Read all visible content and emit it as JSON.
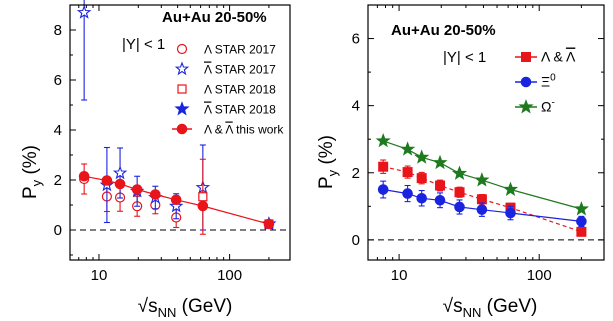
{
  "colors": {
    "red": "#e8151b",
    "blue": "#1a24e0",
    "green": "#1f7a1f",
    "black": "#000000"
  },
  "chart_data": [
    {
      "type": "scatter",
      "title": "Au+Au 20-50%",
      "rapidity_label": "|Y| < 1",
      "xlabel": "√s",
      "xlabel_sub": "NN",
      "xlabel_unit": " (GeV)",
      "ylabel": "P",
      "ylabel_sub": "y",
      "ylabel_unit": " (%)",
      "xscale": "log",
      "xlim": [
        6,
        290
      ],
      "ylim": [
        -1.2,
        9
      ],
      "xticks": [
        10,
        100
      ],
      "yticks": [
        0,
        2,
        4,
        6,
        8
      ],
      "legend_position": "top-right",
      "series": [
        {
          "name": "Λ STAR 2017",
          "marker": "circle-open",
          "color": "#e8151b",
          "points": [
            {
              "x": 7.7,
              "y": 2.04,
              "err": 0.6
            },
            {
              "x": 11.5,
              "y": 1.34,
              "err": 0.6
            },
            {
              "x": 14.5,
              "y": 1.3,
              "err": 0.55
            },
            {
              "x": 19.6,
              "y": 0.95,
              "err": 0.4
            },
            {
              "x": 27,
              "y": 1.0,
              "err": 0.35
            },
            {
              "x": 39,
              "y": 0.5,
              "err": 0.4
            }
          ]
        },
        {
          "name": "Λ STAR 2017",
          "overbar": true,
          "marker": "star-open",
          "color": "#1a24e0",
          "points": [
            {
              "x": 7.7,
              "y": 8.7,
              "err": 3.5
            },
            {
              "x": 11.5,
              "y": 1.8,
              "err": 1.5
            },
            {
              "x": 14.5,
              "y": 2.28,
              "err": 1.0
            },
            {
              "x": 19.6,
              "y": 1.55,
              "err": 0.6
            },
            {
              "x": 27,
              "y": 1.3,
              "err": 0.45
            },
            {
              "x": 39,
              "y": 0.95,
              "err": 0.5
            },
            {
              "x": 62.4,
              "y": 1.7,
              "err": 1.7
            }
          ]
        },
        {
          "name": "Λ STAR 2018",
          "marker": "square-open",
          "color": "#e8151b",
          "points": [
            {
              "x": 62.4,
              "y": 1.33,
              "err": 1.5
            },
            {
              "x": 200,
              "y": 0.24,
              "err": 0.05
            }
          ]
        },
        {
          "name": "Λ STAR 2018",
          "overbar": true,
          "marker": "star-filled",
          "color": "#1a24e0",
          "points": [
            {
              "x": 200,
              "y": 0.24,
              "err": 0.05
            }
          ]
        },
        {
          "name": "Λ & Λ  this work",
          "overbar_second": true,
          "marker": "circle-filled",
          "color": "#e8151b",
          "line": true,
          "points": [
            {
              "x": 7.7,
              "y": 2.15
            },
            {
              "x": 11.5,
              "y": 1.98
            },
            {
              "x": 14.5,
              "y": 1.84
            },
            {
              "x": 19.6,
              "y": 1.62
            },
            {
              "x": 27,
              "y": 1.42
            },
            {
              "x": 39,
              "y": 1.21
            },
            {
              "x": 62.4,
              "y": 0.96
            },
            {
              "x": 200,
              "y": 0.24
            }
          ]
        }
      ]
    },
    {
      "type": "line",
      "title": "Au+Au 20-50%",
      "rapidity_label": "|Y| < 1",
      "xlabel": "√s",
      "xlabel_sub": "NN",
      "xlabel_unit": " (GeV)",
      "ylabel": "P",
      "ylabel_sub": "y",
      "ylabel_unit": " (%)",
      "xscale": "log",
      "xlim": [
        6,
        290
      ],
      "ylim": [
        -0.6,
        7
      ],
      "xticks": [
        10,
        100
      ],
      "yticks": [
        0,
        2,
        4,
        6
      ],
      "legend_position": "top-right",
      "series": [
        {
          "name": "Λ & Λ",
          "overbar_second": true,
          "marker": "square-filled",
          "color": "#e8151b",
          "points": [
            {
              "x": 7.7,
              "y": 2.18,
              "err": 0.2
            },
            {
              "x": 11.5,
              "y": 2.02,
              "err": 0.18
            },
            {
              "x": 14.5,
              "y": 1.84,
              "err": 0.17
            },
            {
              "x": 19.6,
              "y": 1.62,
              "err": 0.16
            },
            {
              "x": 27,
              "y": 1.42,
              "err": 0.15
            },
            {
              "x": 39,
              "y": 1.21,
              "err": 0.14
            },
            {
              "x": 62.4,
              "y": 0.96,
              "err": 0.13
            },
            {
              "x": 200,
              "y": 0.24,
              "err": 0.1
            }
          ]
        },
        {
          "name": "Ξ",
          "sup": "0",
          "marker": "circle-filled",
          "color": "#1a24e0",
          "points": [
            {
              "x": 7.7,
              "y": 1.5,
              "err": 0.25
            },
            {
              "x": 11.5,
              "y": 1.38,
              "err": 0.24
            },
            {
              "x": 14.5,
              "y": 1.24,
              "err": 0.23
            },
            {
              "x": 19.6,
              "y": 1.18,
              "err": 0.22
            },
            {
              "x": 27,
              "y": 0.98,
              "err": 0.21
            },
            {
              "x": 39,
              "y": 0.9,
              "err": 0.2
            },
            {
              "x": 62.4,
              "y": 0.8,
              "err": 0.2
            },
            {
              "x": 200,
              "y": 0.55,
              "err": 0.15
            }
          ]
        },
        {
          "name": "Ω",
          "sup": "-",
          "marker": "star-filled",
          "color": "#1f7a1f",
          "points": [
            {
              "x": 7.7,
              "y": 2.95
            },
            {
              "x": 11.5,
              "y": 2.7
            },
            {
              "x": 14.5,
              "y": 2.46
            },
            {
              "x": 19.6,
              "y": 2.3
            },
            {
              "x": 27,
              "y": 1.98
            },
            {
              "x": 39,
              "y": 1.78
            },
            {
              "x": 62.4,
              "y": 1.5
            },
            {
              "x": 200,
              "y": 0.92
            }
          ]
        }
      ]
    }
  ]
}
